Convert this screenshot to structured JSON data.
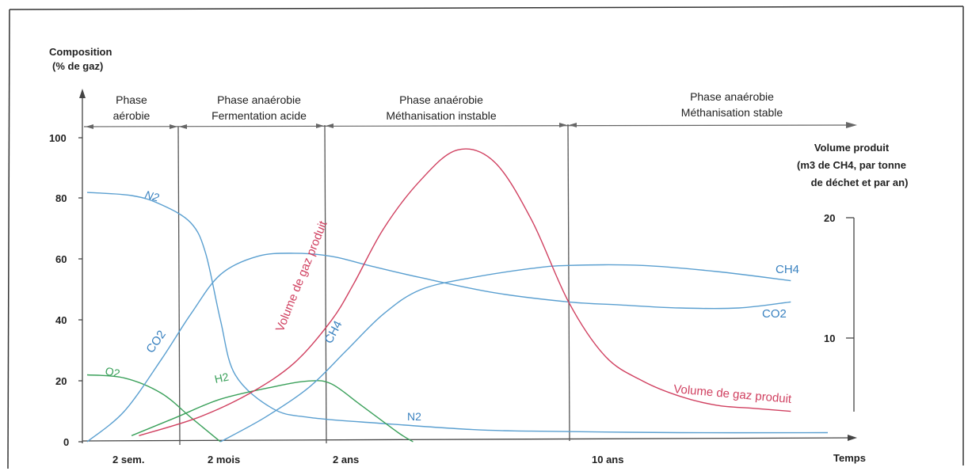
{
  "chart_data": {
    "type": "line",
    "y_title": [
      "Composition",
      "(% de gaz)"
    ],
    "y_ticks": [
      "0",
      "20",
      "40",
      "60",
      "80",
      "100"
    ],
    "ylim": [
      0,
      100
    ],
    "y2_title": [
      "Volume produit",
      "(m3 de CH4, par tonne",
      "de déchet et par an)"
    ],
    "y2_ticks": [
      "10",
      "20"
    ],
    "x_title": "Temps",
    "x_ticks": [
      "2 sem.",
      "2 mois",
      "2 ans",
      "10 ans"
    ],
    "phases": [
      {
        "lines": [
          "Phase",
          "aérobie"
        ]
      },
      {
        "lines": [
          "Phase anaérobie",
          "Fermentation acide"
        ]
      },
      {
        "lines": [
          "Phase anaérobie",
          "Méthanisation instable"
        ]
      },
      {
        "lines": [
          "Phase anaérobie",
          "Méthanisation stable"
        ]
      }
    ],
    "series": [
      {
        "name": "N2",
        "color": "#5a9fd0",
        "points": [
          [
            0,
            82
          ],
          [
            6,
            81
          ],
          [
            10,
            78
          ],
          [
            14,
            72
          ],
          [
            16,
            62
          ],
          [
            18,
            40
          ],
          [
            20,
            22
          ],
          [
            25,
            11
          ],
          [
            30,
            8
          ],
          [
            40,
            6
          ],
          [
            52,
            4
          ],
          [
            60,
            3.5
          ],
          [
            80,
            3
          ],
          [
            100,
            3
          ]
        ]
      },
      {
        "name": "O2",
        "color": "#3aa05a",
        "points": [
          [
            0,
            22
          ],
          [
            5,
            21
          ],
          [
            10,
            16
          ],
          [
            14,
            8
          ],
          [
            17,
            2
          ],
          [
            18,
            0
          ]
        ]
      },
      {
        "name": "CO2",
        "color": "#5a9fd0",
        "points": [
          [
            0,
            0
          ],
          [
            5,
            10
          ],
          [
            10,
            27
          ],
          [
            14,
            42
          ],
          [
            18,
            55
          ],
          [
            23,
            61
          ],
          [
            28,
            62
          ],
          [
            33,
            61
          ],
          [
            38,
            58
          ],
          [
            45,
            54
          ],
          [
            55,
            49
          ],
          [
            65,
            46
          ],
          [
            72,
            45
          ],
          [
            80,
            44
          ],
          [
            88,
            44
          ],
          [
            95,
            46
          ]
        ]
      },
      {
        "name": "H2",
        "color": "#3aa05a",
        "points": [
          [
            6,
            2
          ],
          [
            12,
            8
          ],
          [
            18,
            14
          ],
          [
            25,
            18
          ],
          [
            30,
            20
          ],
          [
            33,
            19
          ],
          [
            37,
            12
          ],
          [
            42,
            3
          ],
          [
            44,
            0
          ]
        ]
      },
      {
        "name": "CH4",
        "color": "#5a9fd0",
        "points": [
          [
            18,
            0
          ],
          [
            24,
            8
          ],
          [
            30,
            18
          ],
          [
            35,
            30
          ],
          [
            40,
            42
          ],
          [
            45,
            50
          ],
          [
            52,
            54
          ],
          [
            60,
            57
          ],
          [
            65,
            58
          ],
          [
            75,
            58
          ],
          [
            85,
            56
          ],
          [
            95,
            53
          ]
        ]
      },
      {
        "name": "Volume de gaz produit",
        "color": "#d04060",
        "points": [
          [
            7,
            2
          ],
          [
            15,
            8
          ],
          [
            22,
            16
          ],
          [
            28,
            26
          ],
          [
            33,
            40
          ],
          [
            36,
            52
          ],
          [
            40,
            70
          ],
          [
            45,
            86
          ],
          [
            50,
            96
          ],
          [
            55,
            92
          ],
          [
            60,
            73
          ],
          [
            65,
            46
          ],
          [
            70,
            28
          ],
          [
            75,
            20
          ],
          [
            80,
            15
          ],
          [
            85,
            12
          ],
          [
            90,
            11
          ],
          [
            95,
            10
          ]
        ]
      }
    ],
    "curve_labels": {
      "N2_top": "N2",
      "N2_bottom": "N2",
      "O2": "O2",
      "CO2_left": "CO2",
      "CO2_right": "CO2",
      "H2": "H2",
      "CH4_left": "CH4",
      "CH4_right": "CH4",
      "volume_left": "Volume de gaz produit",
      "volume_right": "Volume de gaz produit"
    }
  }
}
